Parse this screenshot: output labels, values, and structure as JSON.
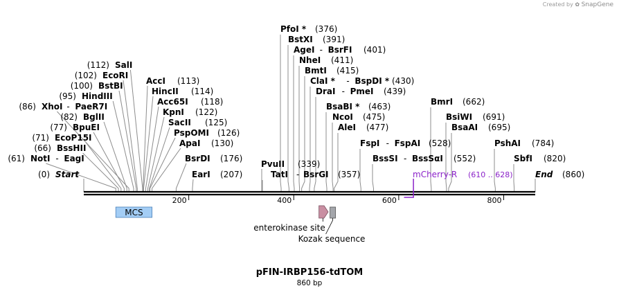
{
  "credit": {
    "prefix": "Created by",
    "brand": "SnapGene",
    "icon": "snapgene-logo-icon"
  },
  "plasmid": {
    "name": "pFIN-IRBP156-tdTOM",
    "length_label": "860 bp",
    "length": 860
  },
  "ruler": {
    "ticks": [
      200,
      400,
      600,
      800
    ]
  },
  "ends": [
    {
      "name": "Start",
      "pos": "(0)"
    },
    {
      "name": "End",
      "pos": "(860)"
    }
  ],
  "sites": [
    {
      "name": "NotI",
      "pos": "(61)"
    },
    {
      "name": "EagI"
    },
    {
      "name": "BssHII",
      "pos": "(66)"
    },
    {
      "name": "EcoP15I",
      "pos": "(71)"
    },
    {
      "name": "BpuEI",
      "pos": "(77)"
    },
    {
      "name": "BglII",
      "pos": "(82)"
    },
    {
      "name": "XhoI",
      "pos": "(86)"
    },
    {
      "name": "PaeR7I"
    },
    {
      "name": "HindIII",
      "pos": "(95)"
    },
    {
      "name": "BstBI",
      "pos": "(100)"
    },
    {
      "name": "EcoRI",
      "pos": "(102)"
    },
    {
      "name": "SalI",
      "pos": "(112)"
    },
    {
      "name": "AccI",
      "pos": "(113)"
    },
    {
      "name": "HincII",
      "pos": "(114)"
    },
    {
      "name": "Acc65I",
      "pos": "(118)"
    },
    {
      "name": "KpnI",
      "pos": "(122)"
    },
    {
      "name": "SacII",
      "pos": "(125)"
    },
    {
      "name": "PspOMI",
      "pos": "(126)"
    },
    {
      "name": "ApaI",
      "pos": "(130)"
    },
    {
      "name": "BsrDI",
      "pos": "(176)"
    },
    {
      "name": "EarI",
      "pos": "(207)"
    },
    {
      "name": "PvuII"
    },
    {
      "name": "TatI"
    },
    {
      "name": "BsrGI"
    },
    {
      "name": "(339)"
    },
    {
      "name": "(357)"
    },
    {
      "name": "PfoI *",
      "pos": "(376)"
    },
    {
      "name": "BstXI",
      "pos": "(391)"
    },
    {
      "name": "AgeI",
      "pos": "(401)"
    },
    {
      "name": "BsrFI"
    },
    {
      "name": "NheI",
      "pos": "(411)"
    },
    {
      "name": "BmtI",
      "pos": "(415)"
    },
    {
      "name": "ClaI *",
      "pos": "(430)"
    },
    {
      "name": "BspDI *"
    },
    {
      "name": "DraI",
      "pos": "(439)"
    },
    {
      "name": "PmeI"
    },
    {
      "name": "BsaBI *",
      "pos": "(463)"
    },
    {
      "name": "NcoI",
      "pos": "(475)"
    },
    {
      "name": "AleI",
      "pos": "(477)"
    },
    {
      "name": "FspI",
      "pos": "(528)"
    },
    {
      "name": "FspAI"
    },
    {
      "name": "BssSI",
      "pos": "(552)"
    },
    {
      "name": "BssSαI"
    },
    {
      "name": "BmrI",
      "pos": "(662)"
    },
    {
      "name": "BsiWI",
      "pos": "(691)"
    },
    {
      "name": "BsaAI",
      "pos": "(695)"
    },
    {
      "name": "PshAI",
      "pos": "(784)"
    },
    {
      "name": "SbfI",
      "pos": "(820)"
    }
  ],
  "features": [
    {
      "name": "MCS",
      "type": "box",
      "color": "#a3cdf5"
    },
    {
      "name": "enterokinase site",
      "type": "arrow",
      "color": "#c98fa2"
    },
    {
      "name": "Kozak sequence",
      "type": "box",
      "color": "#a4a6ab"
    }
  ],
  "primer": {
    "name": "mCherry-R",
    "range": "(610 .. 628)",
    "color": "#8b22c9"
  },
  "colors": {
    "backbone": "#000000",
    "site_line": "#8c8c8c",
    "text": "#000000"
  }
}
